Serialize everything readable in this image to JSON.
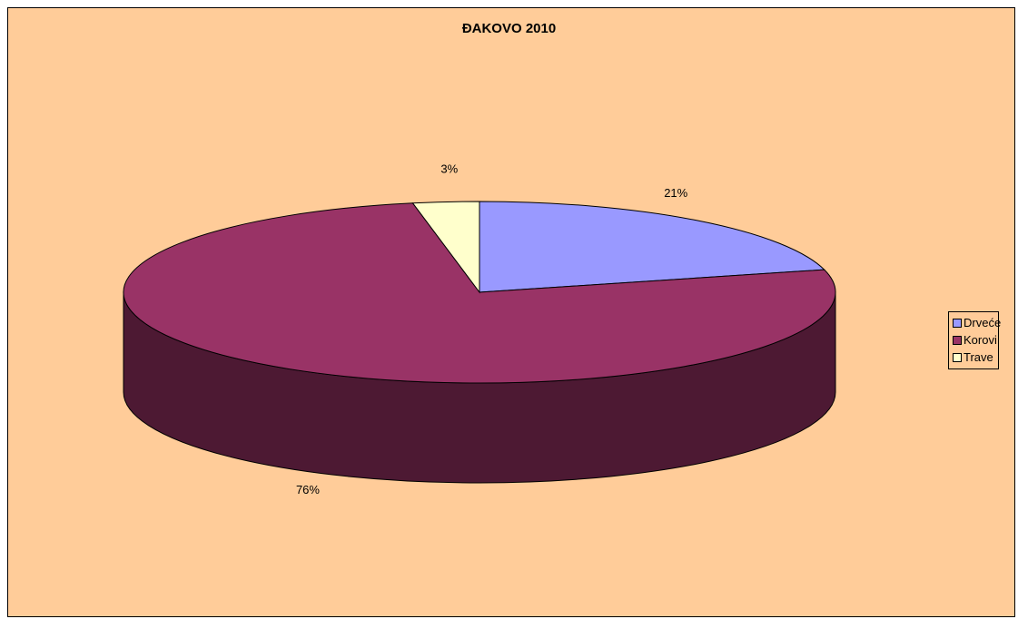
{
  "chart_data": {
    "type": "pie",
    "title": "ĐAKOVO 2010",
    "categories": [
      "Drveće",
      "Korovi",
      "Trave"
    ],
    "values": [
      21,
      76,
      3
    ],
    "value_labels": [
      "21%",
      "76%",
      "3%"
    ],
    "colors": {
      "Drveće": "#9999ff",
      "Korovi": "#993366",
      "Trave": "#ffffcc"
    },
    "side_colors": {
      "Korovi": "#4d1933"
    },
    "background_color": "#ffcc99",
    "legend_position": "right",
    "style": "3d"
  }
}
